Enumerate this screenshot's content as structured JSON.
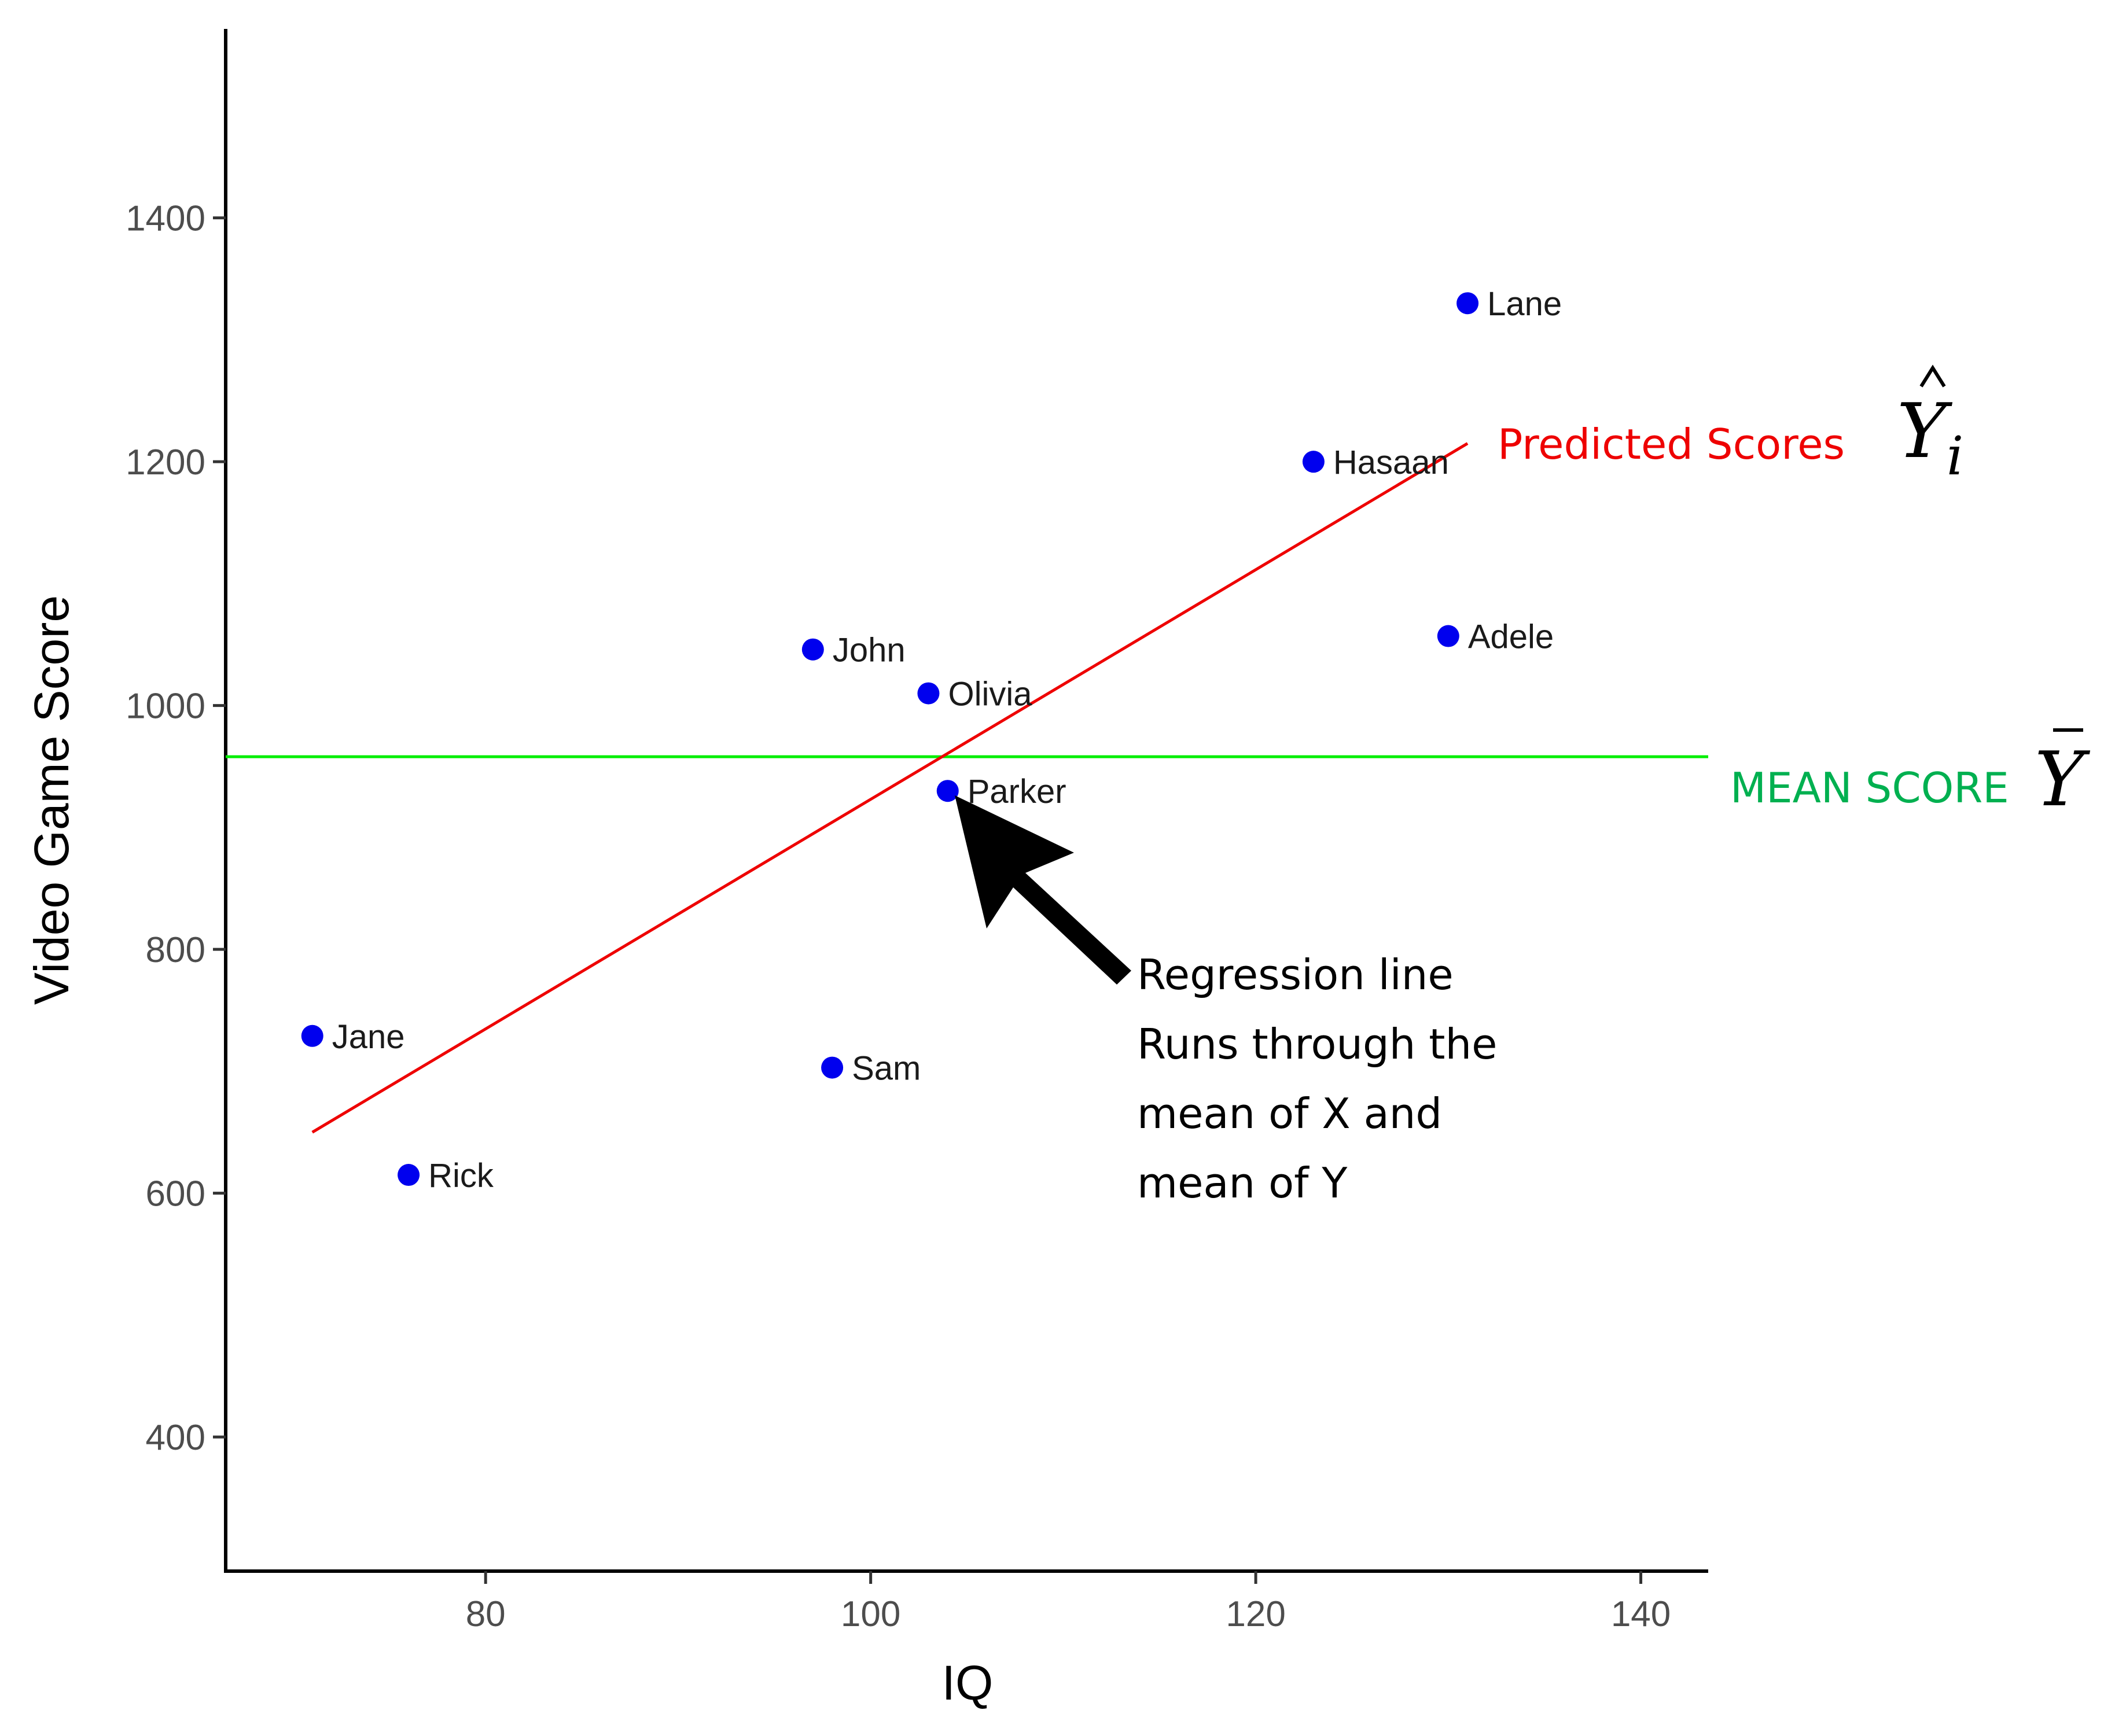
{
  "chart_data": {
    "type": "scatter",
    "xlabel": "IQ",
    "ylabel": "Video Game Score",
    "xlim": [
      66.5,
      143.5
    ],
    "ylim": [
      290,
      1555
    ],
    "x_ticks": [
      80,
      100,
      120,
      140
    ],
    "y_ticks": [
      400,
      600,
      800,
      1000,
      1200,
      1400
    ],
    "grid": false,
    "points": [
      {
        "label": "Lane",
        "x": 131,
        "y": 1330
      },
      {
        "label": "Hasaan",
        "x": 123,
        "y": 1200
      },
      {
        "label": "Adele",
        "x": 130,
        "y": 1057
      },
      {
        "label": "John",
        "x": 97,
        "y": 1046
      },
      {
        "label": "Olivia",
        "x": 103,
        "y": 1010
      },
      {
        "label": "Parker",
        "x": 104,
        "y": 930
      },
      {
        "label": "Jane",
        "x": 71,
        "y": 729
      },
      {
        "label": "Sam",
        "x": 98,
        "y": 703
      },
      {
        "label": "Rick",
        "x": 76,
        "y": 615
      }
    ],
    "regression_line": {
      "x": [
        71,
        131
      ],
      "y": [
        650,
        1215
      ]
    },
    "mean_line": {
      "y": 958
    },
    "annotations": {
      "predicted": {
        "text": "Predicted Scores",
        "symbol": "Y",
        "subscript": "i"
      },
      "mean": {
        "text": "MEAN SCORE",
        "symbol": "Y"
      },
      "regression": {
        "lines": [
          "Regression line",
          "Runs through the",
          "mean of X and",
          "mean of Y"
        ]
      }
    },
    "colors": {
      "points": "#0000ee",
      "regression": "#ee0000",
      "mean": "#00ee00",
      "predicted_text": "#ee0000",
      "mean_text": "#00b050",
      "arrow": "#000000"
    }
  }
}
